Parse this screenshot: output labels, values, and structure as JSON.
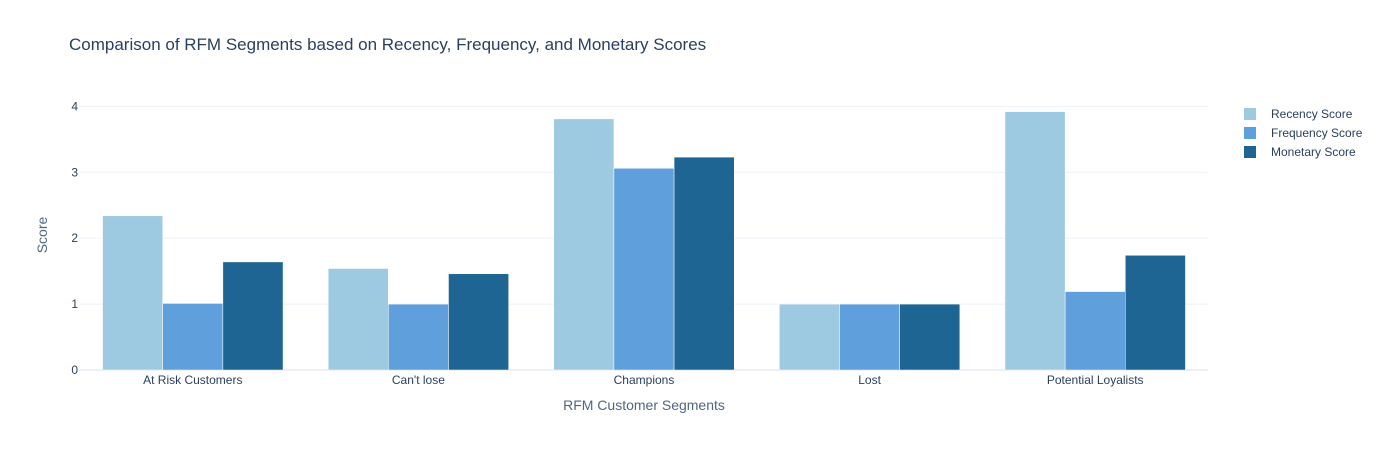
{
  "chart_data": {
    "type": "bar",
    "title": "Comparison of RFM Segments based on Recency, Frequency, and Monetary Scores",
    "xlabel": "RFM Customer Segments",
    "ylabel": "Score",
    "categories": [
      "At Risk Customers",
      "Can't lose",
      "Champions",
      "Lost",
      "Potential Loyalists"
    ],
    "ylim": [
      0,
      4.4
    ],
    "yticks": [
      0,
      1,
      2,
      3,
      4
    ],
    "grid": true,
    "legend_position": "right",
    "series": [
      {
        "name": "Recency Score",
        "color": "#9ecae1",
        "values": [
          2.34,
          1.54,
          3.81,
          1.0,
          3.92
        ]
      },
      {
        "name": "Frequency Score",
        "color": "#5f9fdb",
        "values": [
          1.01,
          1.0,
          3.06,
          1.0,
          1.19
        ]
      },
      {
        "name": "Monetary Score",
        "color": "#1f6593",
        "values": [
          1.64,
          1.46,
          3.23,
          1.0,
          1.74
        ]
      }
    ]
  }
}
